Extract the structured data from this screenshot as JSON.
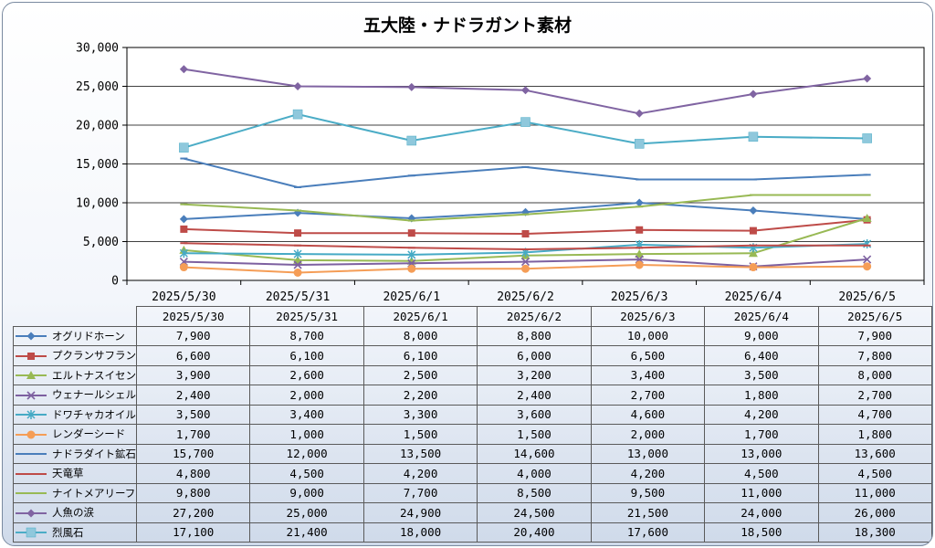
{
  "chart_data": {
    "type": "line",
    "title": "五大陸・ナドラガント素材",
    "categories": [
      "2025/5/30",
      "2025/5/31",
      "2025/6/1",
      "2025/6/2",
      "2025/6/3",
      "2025/6/4",
      "2025/6/5"
    ],
    "ylim": [
      0,
      30000
    ],
    "yticks": [
      "0",
      "5,000",
      "10,000",
      "15,000",
      "20,000",
      "25,000",
      "30,000"
    ],
    "grid": true,
    "legend": "data-table",
    "series": [
      {
        "name": "オグリドホーン",
        "color": "#4a7ebb",
        "marker": "diamond",
        "values": [
          7900,
          8700,
          8000,
          8800,
          10000,
          9000,
          7900
        ],
        "labels": [
          "7,900",
          "8,700",
          "8,000",
          "8,800",
          "10,000",
          "9,000",
          "7,900"
        ]
      },
      {
        "name": "プクランサフラン",
        "color": "#be4b48",
        "marker": "square",
        "values": [
          6600,
          6100,
          6100,
          6000,
          6500,
          6400,
          7800
        ],
        "labels": [
          "6,600",
          "6,100",
          "6,100",
          "6,000",
          "6,500",
          "6,400",
          "7,800"
        ]
      },
      {
        "name": "エルトナスイセン",
        "color": "#98b954",
        "marker": "triangle",
        "values": [
          3900,
          2600,
          2500,
          3200,
          3400,
          3500,
          8000
        ],
        "labels": [
          "3,900",
          "2,600",
          "2,500",
          "3,200",
          "3,400",
          "3,500",
          "8,000"
        ]
      },
      {
        "name": "ウェナールシェル",
        "color": "#7d60a0",
        "marker": "x",
        "values": [
          2400,
          2000,
          2200,
          2400,
          2700,
          1800,
          2700
        ],
        "labels": [
          "2,400",
          "2,000",
          "2,200",
          "2,400",
          "2,700",
          "1,800",
          "2,700"
        ]
      },
      {
        "name": "ドワチャカオイル",
        "color": "#46aac5",
        "marker": "star",
        "values": [
          3500,
          3400,
          3300,
          3600,
          4600,
          4200,
          4700
        ],
        "labels": [
          "3,500",
          "3,400",
          "3,300",
          "3,600",
          "4,600",
          "4,200",
          "4,700"
        ]
      },
      {
        "name": "レンダーシード",
        "color": "#f59d56",
        "marker": "circle",
        "values": [
          1700,
          1000,
          1500,
          1500,
          2000,
          1700,
          1800
        ],
        "labels": [
          "1,700",
          "1,000",
          "1,500",
          "1,500",
          "2,000",
          "1,700",
          "1,800"
        ]
      },
      {
        "name": "ナドラダイト鉱石",
        "color": "#4a7ebb",
        "marker": "dash",
        "values": [
          15700,
          12000,
          13500,
          14600,
          13000,
          13000,
          13600
        ],
        "labels": [
          "15,700",
          "12,000",
          "13,500",
          "14,600",
          "13,000",
          "13,000",
          "13,600"
        ]
      },
      {
        "name": "天竜草",
        "color": "#be4b48",
        "marker": "dash",
        "values": [
          4800,
          4500,
          4200,
          4000,
          4200,
          4500,
          4500
        ],
        "labels": [
          "4,800",
          "4,500",
          "4,200",
          "4,000",
          "4,200",
          "4,500",
          "4,500"
        ]
      },
      {
        "name": "ナイトメアリーフ",
        "color": "#98b954",
        "marker": "dash",
        "values": [
          9800,
          9000,
          7700,
          8500,
          9500,
          11000,
          11000
        ],
        "labels": [
          "9,800",
          "9,000",
          "7,700",
          "8,500",
          "9,500",
          "11,000",
          "11,000"
        ]
      },
      {
        "name": "人魚の涙",
        "color": "#8064a2",
        "marker": "diamond",
        "values": [
          27200,
          25000,
          24900,
          24500,
          21500,
          24000,
          26000
        ],
        "labels": [
          "27,200",
          "25,000",
          "24,900",
          "24,500",
          "21,500",
          "24,000",
          "26,000"
        ]
      },
      {
        "name": "烈風石",
        "color": "#4bacc6",
        "marker": "square-big",
        "values": [
          17100,
          21400,
          18000,
          20400,
          17600,
          18500,
          18300
        ],
        "labels": [
          "17,100",
          "21,400",
          "18,000",
          "20,400",
          "17,600",
          "18,500",
          "18,300"
        ]
      }
    ]
  }
}
